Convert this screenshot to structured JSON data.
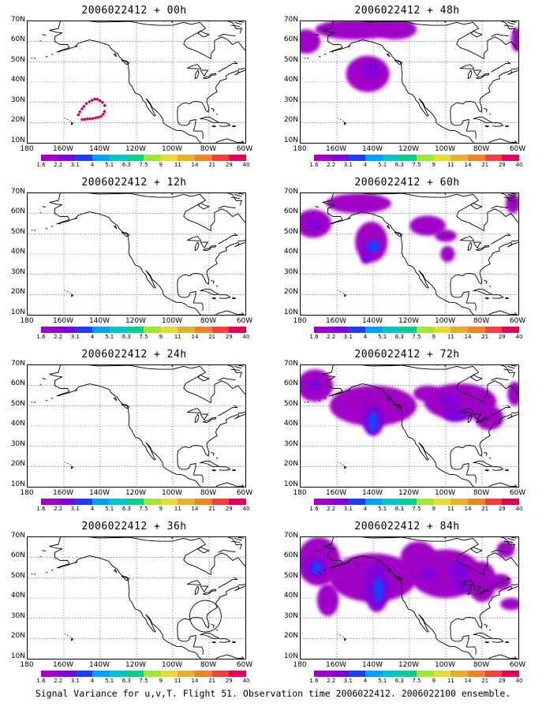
{
  "footer": "Signal Variance for u,v,T. Flight 51. Observation time 2006022412. 2006022100 ensemble.",
  "lat_labels": [
    "70N",
    "60N",
    "50N",
    "40N",
    "30N",
    "20N",
    "10N"
  ],
  "lon_labels": [
    "180",
    "160W",
    "140W",
    "120W",
    "100W",
    "80W",
    "60W"
  ],
  "colorbar": {
    "colors": [
      "#a000c8",
      "#8200dc",
      "#1e3cff",
      "#00a0ff",
      "#00c8c8",
      "#00d28c",
      "#a0e632",
      "#e6dc32",
      "#e6af2d",
      "#f08228",
      "#fa3c3c",
      "#e6005a"
    ],
    "labels": [
      "1.6",
      "2.2",
      "3.1",
      "4",
      "5.1",
      "6.3",
      "7.5",
      "9",
      "11",
      "14",
      "21",
      "29",
      "40"
    ]
  },
  "panels": [
    {
      "title": "2006022412 + 00h"
    },
    {
      "title": "2006022412 + 48h"
    },
    {
      "title": "2006022412 + 12h"
    },
    {
      "title": "2006022412 + 60h"
    },
    {
      "title": "2006022412 + 24h"
    },
    {
      "title": "2006022412 + 72h"
    },
    {
      "title": "2006022412 + 36h"
    },
    {
      "title": "2006022412 + 84h"
    }
  ]
}
